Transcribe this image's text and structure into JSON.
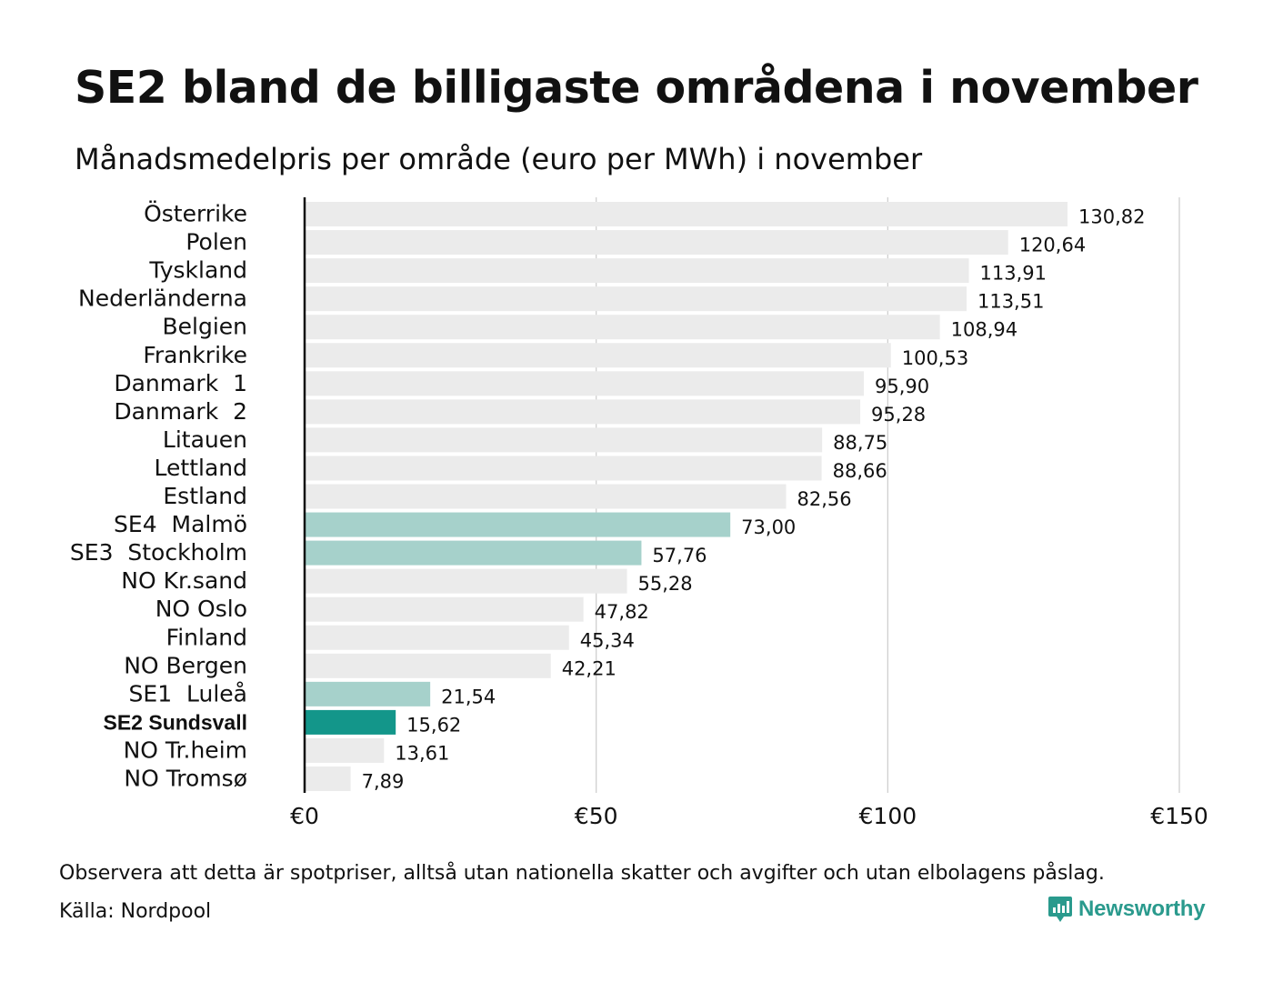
{
  "title": "SE2 bland de billigaste områdena i november",
  "subtitle": "Månadsmedelpris per område (euro per MWh) i november",
  "note": "Observera att detta är spotpriser, alltså utan nationella skatter och avgifter och utan elbolagens påslag.",
  "source": "Källa: Nordpool",
  "brand": {
    "name": "Newsworthy",
    "icon": "newsworthy-logo-icon",
    "color": "#2a9a8d"
  },
  "colors": {
    "default_bar": "#ebebeb",
    "se_bar": "#a6d1cb",
    "highlight_bar": "#13968a",
    "axis": "#111111",
    "grid": "#cfcfcf"
  },
  "chart_data": {
    "type": "bar",
    "orientation": "horizontal",
    "categories": [
      "Österrike",
      "Polen",
      "Tyskland",
      "Nederländerna",
      "Belgien",
      "Frankrike",
      "Danmark  1",
      "Danmark  2",
      "Litauen",
      "Lettland",
      "Estland",
      "SE4  Malmö",
      "SE3  Stockholm",
      "NO Kr.sand",
      "NO Oslo",
      "Finland",
      "NO Bergen",
      "SE1  Luleå",
      "SE2 Sundsvall",
      "NO Tr.heim",
      "NO Tromsø"
    ],
    "values": [
      130.82,
      120.64,
      113.91,
      113.51,
      108.94,
      100.53,
      95.9,
      95.28,
      88.75,
      88.66,
      82.56,
      73.0,
      57.76,
      55.28,
      47.82,
      45.34,
      42.21,
      21.54,
      15.62,
      13.61,
      7.89
    ],
    "value_labels": [
      "130,82",
      "120,64",
      "113,91",
      "113,51",
      "108,94",
      "100,53",
      "95,90",
      "95,28",
      "88,75",
      "88,66",
      "82,56",
      "73,00",
      "57,76",
      "55,28",
      "47,82",
      "45,34",
      "42,21",
      "21,54",
      "15,62",
      "13,61",
      "7,89"
    ],
    "bar_styles": [
      "default",
      "default",
      "default",
      "default",
      "default",
      "default",
      "default",
      "default",
      "default",
      "default",
      "default",
      "se",
      "se",
      "default",
      "default",
      "default",
      "default",
      "se",
      "highlight",
      "default",
      "default"
    ],
    "highlight_category": "SE2 Sundsvall",
    "x_ticks": [
      0,
      50,
      100,
      150
    ],
    "x_tick_labels": [
      "€0",
      "€50",
      "€100",
      "€150"
    ],
    "xlim": [
      0,
      150
    ],
    "grid": true,
    "xlabel": "",
    "ylabel": ""
  }
}
